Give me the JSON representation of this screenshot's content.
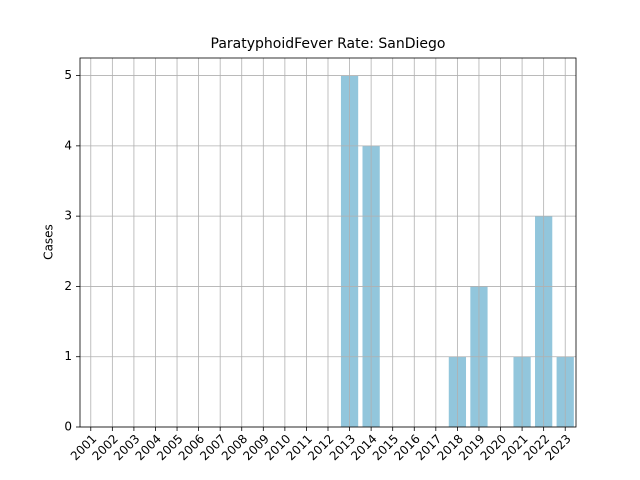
{
  "chart_data": {
    "type": "bar",
    "title": "ParatyphoidFever Rate: SanDiego",
    "ylabel": "Cases",
    "categories": [
      "2001",
      "2002",
      "2003",
      "2004",
      "2005",
      "2006",
      "2007",
      "2008",
      "2009",
      "2010",
      "2011",
      "2012",
      "2013",
      "2014",
      "2015",
      "2016",
      "2017",
      "2018",
      "2019",
      "2020",
      "2021",
      "2022",
      "2023"
    ],
    "values": [
      0,
      0,
      0,
      0,
      0,
      0,
      0,
      0,
      0,
      0,
      0,
      0,
      5,
      4,
      0,
      0,
      0,
      1,
      2,
      0,
      1,
      3,
      1
    ],
    "color": "#92c6dc",
    "ylim": [
      0,
      5.25
    ],
    "yticks": [
      0,
      1,
      2,
      3,
      4,
      5
    ],
    "grid": true
  }
}
